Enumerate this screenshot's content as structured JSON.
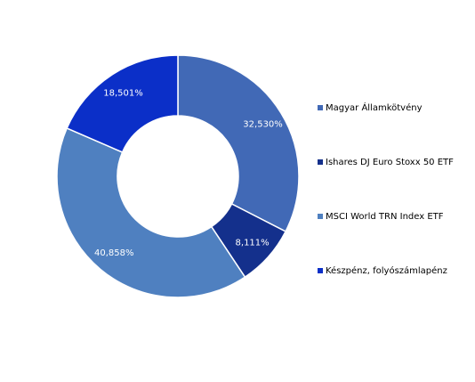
{
  "chart_data": {
    "type": "pie",
    "donut": true,
    "categories": [
      "Magyar Államkötvény",
      "Ishares DJ Euro Stoxx 50 ETF",
      "MSCI World TRN Index ETF",
      "Készpénz, folyószámlapénz"
    ],
    "values": [
      32.53,
      8.111,
      40.858,
      18.501
    ],
    "value_labels": [
      "32,530%",
      "8,111%",
      "40,858%",
      "18,501%"
    ],
    "colors": [
      "#4169b6",
      "#14308c",
      "#4f80c0",
      "#0b2fc8"
    ]
  }
}
